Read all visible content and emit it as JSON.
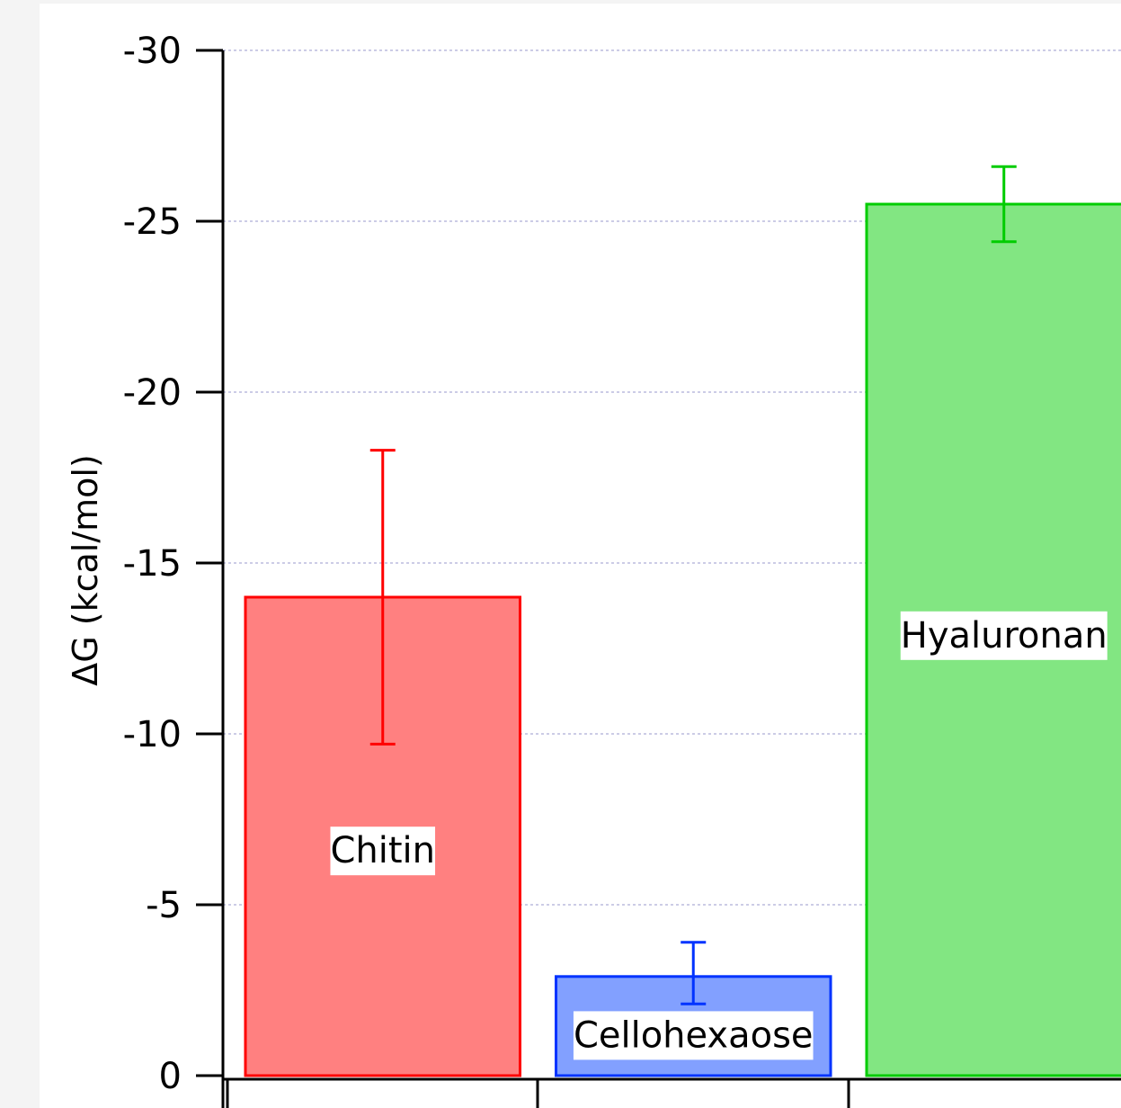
{
  "chart_data": {
    "type": "bar",
    "ylabel": "ΔG  (kcal/mol)",
    "ylim": [
      0,
      -30
    ],
    "y_ticks": [
      0,
      -5,
      -10,
      -15,
      -20,
      -25,
      -30
    ],
    "y_tick_labels": [
      "0",
      "-5",
      "-10",
      "-15",
      "-20",
      "-25",
      "-30"
    ],
    "grid": true,
    "categories": [
      "Chitin",
      "Cellohexaose",
      "Hyaluronan"
    ],
    "values": [
      -14.0,
      -2.9,
      -25.5
    ],
    "error_low": [
      -9.7,
      -2.1,
      -24.4
    ],
    "error_high": [
      -18.3,
      -3.9,
      -26.6
    ],
    "colors": {
      "fills": [
        "#ff8080",
        "#82a0ff",
        "#82e682"
      ],
      "strokes": [
        "#ff0000",
        "#0033ff",
        "#00cc00"
      ],
      "grid": "#9999cc",
      "axis": "#000000"
    }
  }
}
